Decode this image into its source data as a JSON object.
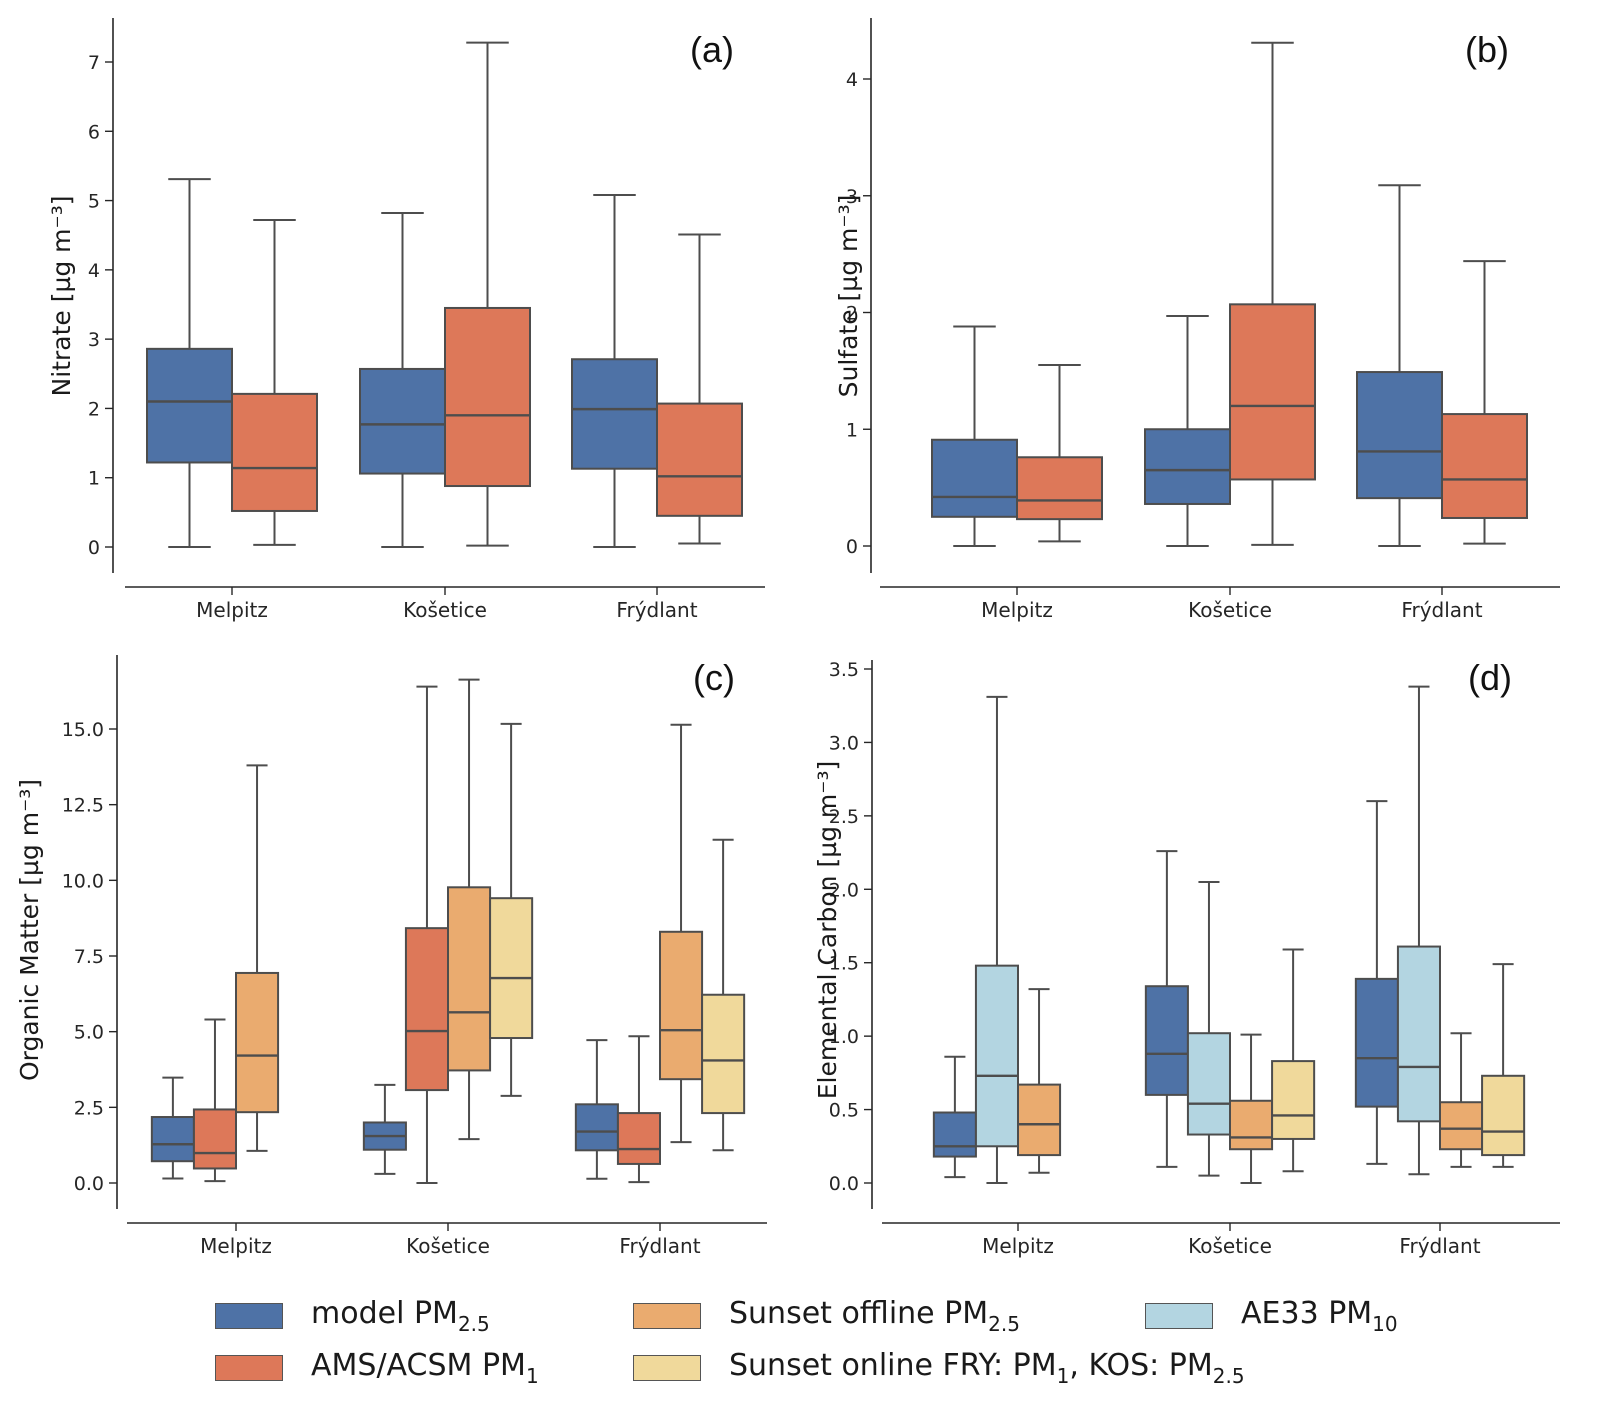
{
  "chart_data": [
    {
      "panel": "(a)",
      "type": "box",
      "ylabel": "Nitrate [µg m⁻³]",
      "ylim": [
        -0.35,
        7.6
      ],
      "yticks": [
        0,
        1,
        2,
        3,
        4,
        5,
        6,
        7
      ],
      "ytick_labels": [
        "0",
        "1",
        "2",
        "3",
        "4",
        "5",
        "6",
        "7"
      ],
      "categories": [
        "Melpitz",
        "Košetice",
        "Frýdlant"
      ],
      "series": [
        {
          "name": "model PM2.5",
          "color": "#4e72a6",
          "boxes": [
            {
              "min": 0.0,
              "q1": 1.22,
              "median": 2.1,
              "q3": 2.86,
              "max": 5.31
            },
            {
              "min": 0.0,
              "q1": 1.06,
              "median": 1.77,
              "q3": 2.57,
              "max": 4.82
            },
            {
              "min": 0.0,
              "q1": 1.13,
              "median": 1.99,
              "q3": 2.71,
              "max": 5.08
            }
          ]
        },
        {
          "name": "AMS/ACSM PM1",
          "color": "#dd7859",
          "boxes": [
            {
              "min": 0.03,
              "q1": 0.52,
              "median": 1.14,
              "q3": 2.21,
              "max": 4.72
            },
            {
              "min": 0.02,
              "q1": 0.88,
              "median": 1.9,
              "q3": 3.45,
              "max": 7.28
            },
            {
              "min": 0.05,
              "q1": 0.45,
              "median": 1.02,
              "q3": 2.07,
              "max": 4.51
            }
          ]
        }
      ]
    },
    {
      "panel": "(b)",
      "type": "box",
      "ylabel": "Sulfate [µg m⁻³]",
      "ylim": [
        -0.22,
        4.5
      ],
      "yticks": [
        0,
        1,
        2,
        3,
        4
      ],
      "ytick_labels": [
        "0",
        "1",
        "2",
        "3",
        "4"
      ],
      "categories": [
        "Melpitz",
        "Košetice",
        "Frýdlant"
      ],
      "series": [
        {
          "name": "model PM2.5",
          "color": "#4e72a6",
          "boxes": [
            {
              "min": 0.0,
              "q1": 0.25,
              "median": 0.42,
              "q3": 0.91,
              "max": 1.88
            },
            {
              "min": 0.0,
              "q1": 0.36,
              "median": 0.65,
              "q3": 1.0,
              "max": 1.97
            },
            {
              "min": 0.0,
              "q1": 0.41,
              "median": 0.81,
              "q3": 1.49,
              "max": 3.09
            }
          ]
        },
        {
          "name": "AMS/ACSM PM1",
          "color": "#dd7859",
          "boxes": [
            {
              "min": 0.04,
              "q1": 0.23,
              "median": 0.39,
              "q3": 0.76,
              "max": 1.55
            },
            {
              "min": 0.01,
              "q1": 0.57,
              "median": 1.2,
              "q3": 2.07,
              "max": 4.31
            },
            {
              "min": 0.02,
              "q1": 0.24,
              "median": 0.57,
              "q3": 1.13,
              "max": 2.44
            }
          ]
        }
      ]
    },
    {
      "panel": "(c)",
      "type": "box",
      "ylabel": "Organic Matter [µg m⁻³]",
      "ylim": [
        -1.0,
        17.5
      ],
      "yticks": [
        0,
        2.5,
        5,
        7.5,
        10,
        12.5,
        15
      ],
      "ytick_labels": [
        "0.0",
        "2.5",
        "5.0",
        "7.5",
        "10.0",
        "12.5",
        "15.0"
      ],
      "categories": [
        "Melpitz",
        "Košetice",
        "Frýdlant"
      ],
      "series": [
        {
          "name": "model PM2.5",
          "color": "#4e72a6",
          "boxes": [
            {
              "min": 0.15,
              "q1": 0.72,
              "median": 1.28,
              "q3": 2.18,
              "max": 3.48
            },
            {
              "min": 0.3,
              "q1": 1.1,
              "median": 1.55,
              "q3": 2.0,
              "max": 3.24
            },
            {
              "min": 0.14,
              "q1": 1.08,
              "median": 1.7,
              "q3": 2.6,
              "max": 4.72
            }
          ]
        },
        {
          "name": "AMS/ACSM PM1",
          "color": "#dd7859",
          "boxes": [
            {
              "min": 0.06,
              "q1": 0.48,
              "median": 0.99,
              "q3": 2.43,
              "max": 5.4
            },
            {
              "min": 0.0,
              "q1": 3.07,
              "median": 5.02,
              "q3": 8.42,
              "max": 16.4
            },
            {
              "min": 0.03,
              "q1": 0.63,
              "median": 1.12,
              "q3": 2.31,
              "max": 4.85
            }
          ]
        },
        {
          "name": "Sunset offline PM2.5",
          "color": "#eaab6f",
          "boxes": [
            {
              "min": 1.06,
              "q1": 2.34,
              "median": 4.21,
              "q3": 6.94,
              "max": 13.8
            },
            {
              "min": 1.45,
              "q1": 3.72,
              "median": 5.64,
              "q3": 9.77,
              "max": 16.63
            },
            {
              "min": 1.35,
              "q1": 3.43,
              "median": 5.05,
              "q3": 8.3,
              "max": 15.14
            }
          ]
        },
        {
          "name": "Sunset online FRY: PM1, KOS: PM2.5",
          "color": "#f0d99b",
          "boxes": [
            null,
            {
              "min": 2.88,
              "q1": 4.79,
              "median": 6.77,
              "q3": 9.41,
              "max": 15.17
            },
            {
              "min": 1.08,
              "q1": 2.31,
              "median": 4.05,
              "q3": 6.22,
              "max": 11.34
            }
          ]
        }
      ]
    },
    {
      "panel": "(d)",
      "type": "box",
      "ylabel": "Elemental Carbon [µg m⁻³]",
      "ylim": [
        -0.17,
        3.55
      ],
      "yticks": [
        0,
        0.5,
        1,
        1.5,
        2,
        2.5,
        3,
        3.5
      ],
      "ytick_labels": [
        "0.0",
        "0.5",
        "1.0",
        "1.5",
        "2.0",
        "2.5",
        "3.0",
        "3.5"
      ],
      "categories": [
        "Melpitz",
        "Košetice",
        "Frýdlant"
      ],
      "series": [
        {
          "name": "model PM2.5",
          "color": "#4e72a6",
          "boxes": [
            {
              "min": 0.04,
              "q1": 0.18,
              "median": 0.25,
              "q3": 0.48,
              "max": 0.86
            },
            {
              "min": 0.11,
              "q1": 0.6,
              "median": 0.88,
              "q3": 1.34,
              "max": 2.26
            },
            {
              "min": 0.13,
              "q1": 0.52,
              "median": 0.85,
              "q3": 1.39,
              "max": 2.6
            }
          ]
        },
        {
          "name": "AE33 PM10",
          "color": "#b3d5e1",
          "boxes": [
            {
              "min": 0.0,
              "q1": 0.25,
              "median": 0.73,
              "q3": 1.48,
              "max": 3.31
            },
            {
              "min": 0.05,
              "q1": 0.33,
              "median": 0.54,
              "q3": 1.02,
              "max": 2.05
            },
            {
              "min": 0.06,
              "q1": 0.42,
              "median": 0.79,
              "q3": 1.61,
              "max": 3.38
            }
          ]
        },
        {
          "name": "Sunset offline PM2.5",
          "color": "#eaab6f",
          "boxes": [
            {
              "min": 0.07,
              "q1": 0.19,
              "median": 0.4,
              "q3": 0.67,
              "max": 1.32
            },
            {
              "min": 0.0,
              "q1": 0.23,
              "median": 0.31,
              "q3": 0.56,
              "max": 1.01
            },
            {
              "min": 0.11,
              "q1": 0.23,
              "median": 0.37,
              "q3": 0.55,
              "max": 1.02
            }
          ]
        },
        {
          "name": "Sunset online FRY: PM1, KOS: PM2.5",
          "color": "#f0d99b",
          "boxes": [
            null,
            {
              "min": 0.08,
              "q1": 0.3,
              "median": 0.46,
              "q3": 0.83,
              "max": 1.59
            },
            {
              "min": 0.11,
              "q1": 0.19,
              "median": 0.35,
              "q3": 0.73,
              "max": 1.49
            }
          ]
        }
      ]
    }
  ],
  "legend": {
    "items": [
      {
        "name": "model PM",
        "sub": "2.5",
        "suffix": "",
        "color": "#4e72a6"
      },
      {
        "name": "AMS/ACSM PM",
        "sub": "1",
        "suffix": "",
        "color": "#dd7859"
      },
      {
        "name": "Sunset offline PM",
        "sub": "2.5",
        "suffix": "",
        "color": "#eaab6f"
      },
      {
        "name": "Sunset online FRY: PM",
        "sub": "1",
        "suffix": ", KOS: PM",
        "sub2": "2.5",
        "color": "#f0d99b"
      },
      {
        "name": "AE33 PM",
        "sub": "10",
        "suffix": "",
        "color": "#b3d5e1"
      }
    ]
  },
  "style": {
    "line_color": "#4d4d4d",
    "axis_color": "#262626"
  }
}
